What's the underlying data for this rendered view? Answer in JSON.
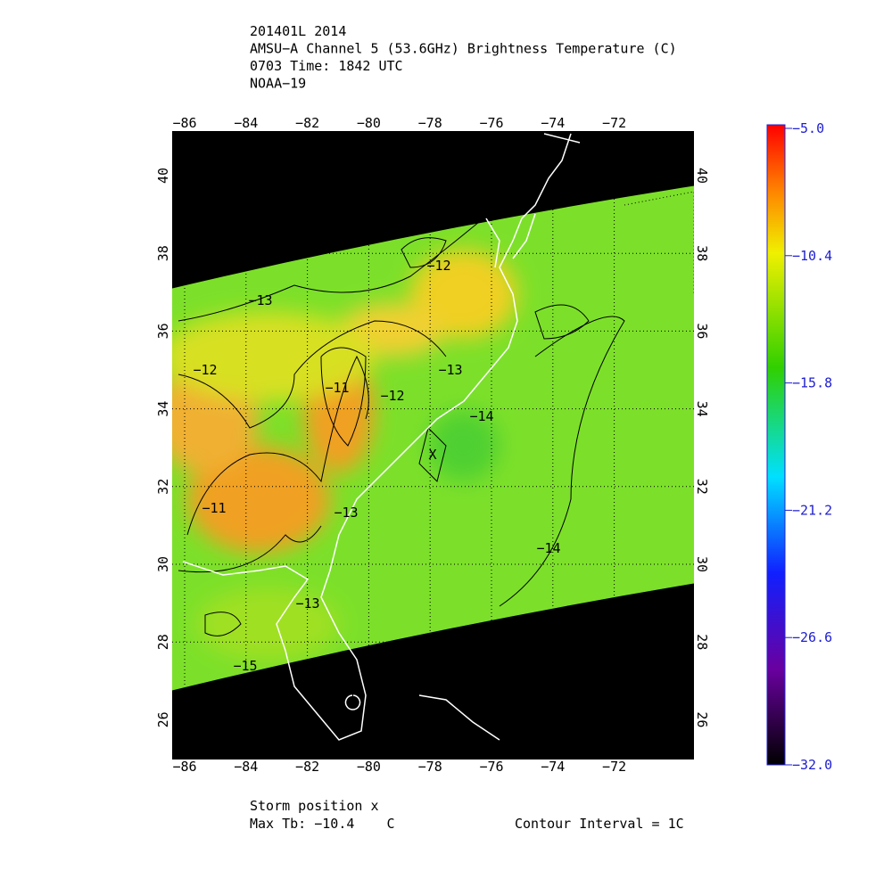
{
  "header": {
    "lines": [
      "201401L 2014",
      "AMSU−A Channel 5 (53.6GHz) Brightness Temperature (C)",
      "0703 Time: 1842 UTC",
      "NOAA−19"
    ]
  },
  "map": {
    "lon_ticks": [
      {
        "value": -86,
        "label": "−86"
      },
      {
        "value": -84,
        "label": "−84"
      },
      {
        "value": -82,
        "label": "−82"
      },
      {
        "value": -80,
        "label": "−80"
      },
      {
        "value": -78,
        "label": "−78"
      },
      {
        "value": -76,
        "label": "−76"
      },
      {
        "value": -74,
        "label": "−74"
      },
      {
        "value": -72,
        "label": "−72"
      }
    ],
    "lat_ticks": [
      26,
      28,
      30,
      32,
      34,
      36,
      38,
      40
    ],
    "contour_labels": [
      "−13",
      "−12",
      "−12",
      "−11",
      "−12",
      "−13",
      "−14",
      "−11",
      "−13",
      "−14",
      "−13",
      "−15"
    ],
    "storm_marker": "X"
  },
  "colorbar": {
    "ticks": [
      {
        "value": -5.0,
        "label": "−5.0"
      },
      {
        "value": -10.4,
        "label": "−10.4"
      },
      {
        "value": -15.8,
        "label": "−15.8"
      },
      {
        "value": -21.2,
        "label": "−21.2"
      },
      {
        "value": -26.6,
        "label": "−26.6"
      },
      {
        "value": -32.0,
        "label": "−32.0"
      }
    ],
    "lim": [
      -32.0,
      -5.0
    ]
  },
  "footer": {
    "storm": "Storm position x",
    "max_tb": "Max Tb: −10.4    C",
    "interval": "Contour Interval = 1C"
  }
}
